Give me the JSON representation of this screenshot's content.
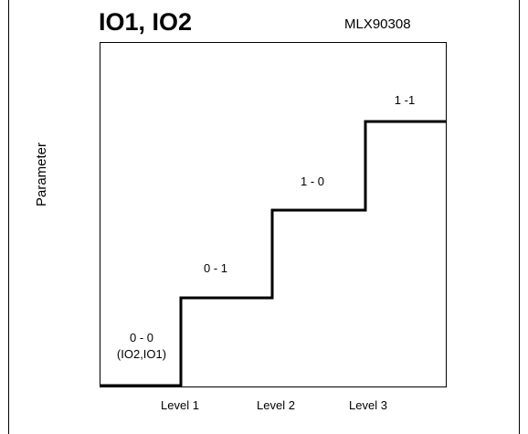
{
  "title": "IO1, IO2",
  "part_number": "MLX90308",
  "y_axis_label": "Parameter",
  "steps": [
    {
      "code": "0 - 0",
      "note": "(IO2,IO1)"
    },
    {
      "code": "0 - 1"
    },
    {
      "code": "1 - 0"
    },
    {
      "code": "1 -1"
    }
  ],
  "x_levels": [
    "Level 1",
    "Level 2",
    "Level 3"
  ],
  "colors": {
    "line": "#000000",
    "background": "#ffffff"
  }
}
